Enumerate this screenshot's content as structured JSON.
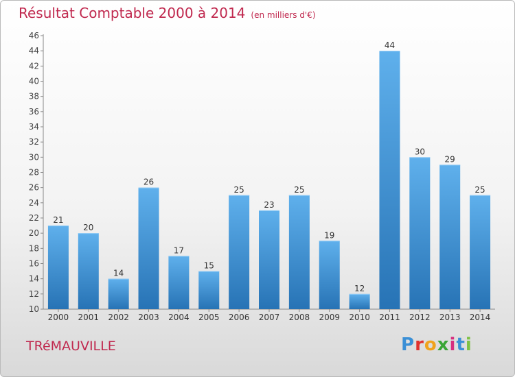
{
  "header": {
    "title": "Résultat Comptable 2000 à 2014",
    "subtitle": "(en milliers d'€)"
  },
  "footer": {
    "commune": "TRéMAUVILLE",
    "logo": {
      "text": "Proxiti",
      "letter_colors": [
        "#3a8fd6",
        "#e0312d",
        "#f0a21c",
        "#3aa536",
        "#d72e7f",
        "#3a8fd6",
        "#7cc142"
      ]
    }
  },
  "colors": {
    "bar_top": "#5fb0ec",
    "bar_bottom": "#2773b5",
    "accent": "#c0284e"
  },
  "chart_data": {
    "type": "bar",
    "title": "Résultat Comptable 2000 à 2014",
    "subtitle": "(en milliers d'€)",
    "xlabel": "",
    "ylabel": "",
    "categories": [
      "2000",
      "2001",
      "2002",
      "2003",
      "2004",
      "2005",
      "2006",
      "2007",
      "2008",
      "2009",
      "2010",
      "2011",
      "2012",
      "2013",
      "2014"
    ],
    "values": [
      21,
      20,
      14,
      26,
      17,
      15,
      25,
      23,
      25,
      19,
      12,
      44,
      30,
      29,
      25
    ],
    "ylim": [
      10,
      46
    ],
    "ytick_step": 2,
    "grid": false,
    "legend": "none"
  }
}
